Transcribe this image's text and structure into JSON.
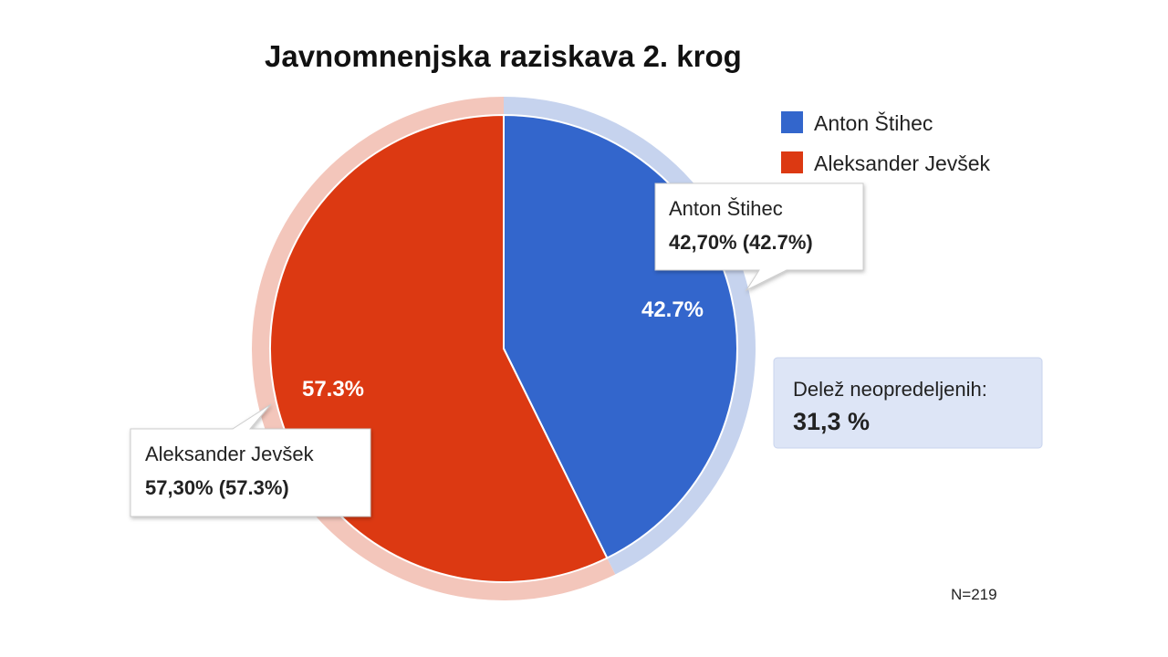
{
  "chart_data": {
    "type": "pie",
    "title": "Javnomnenjska raziskava 2. krog",
    "categories": [
      "Anton Štihec",
      "Aleksander Jevšek"
    ],
    "values": [
      42.7,
      57.3
    ],
    "colors": [
      "#3366cc",
      "#dc3912"
    ],
    "highlight_colors": [
      "#c6d3ee",
      "#f3c6bb"
    ],
    "slice_labels": [
      "42.7%",
      "57.3%"
    ],
    "tooltips": [
      {
        "name": "Anton Štihec",
        "value": "42,70% (42.7%)"
      },
      {
        "name": "Aleksander Jevšek",
        "value": "57,30% (57.3%)"
      }
    ],
    "legend": {
      "position": "top-right",
      "entries": [
        "Anton Štihec",
        "Aleksander Jevšek"
      ]
    }
  },
  "annotation": {
    "label": "Delež neopredeljenih:",
    "value": "31,3 %",
    "background": "#dde5f6"
  },
  "sample_size": "N=219"
}
